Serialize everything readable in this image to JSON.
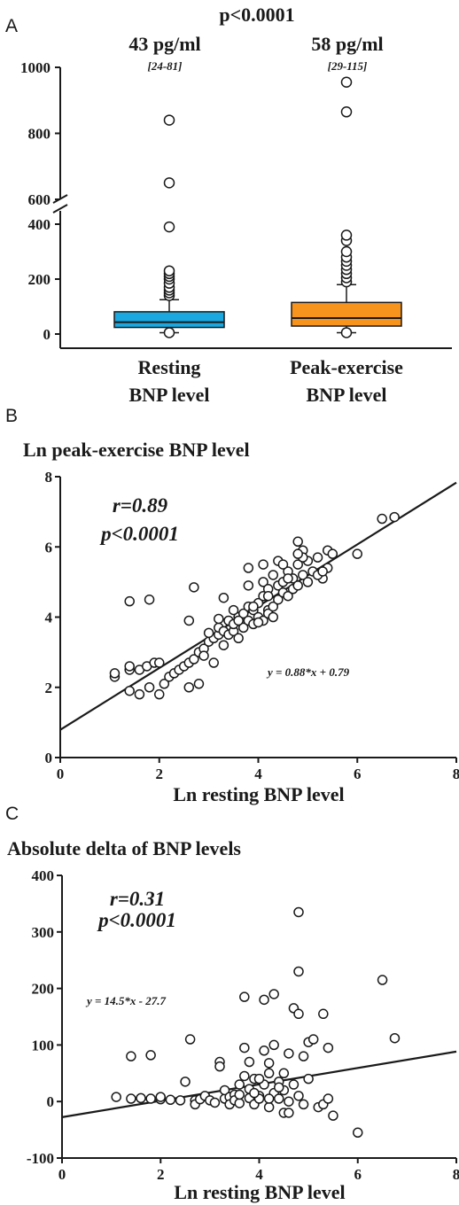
{
  "chart_data": [
    {
      "panel": "A",
      "type": "box",
      "top_annotation": "p<0.0001",
      "axis_break": [
        400,
        600
      ],
      "yticks": [
        "0",
        "200",
        "400",
        "600",
        "800",
        "1000"
      ],
      "categories": [
        "Resting BNP level",
        "Peak-exercise BNP level"
      ],
      "category_lines": [
        [
          "Resting",
          "BNP level"
        ],
        [
          "Peak-exercise",
          "BNP level"
        ]
      ],
      "medians_text": [
        "43 pg/ml",
        "58 pg/ml"
      ],
      "iqr_text": [
        "[24-81]",
        "[29-115]"
      ],
      "colors": [
        "#1ba8e0",
        "#f7941d"
      ],
      "boxes": [
        {
          "q1": 24,
          "median": 43,
          "q3": 81,
          "whisker_low": 5,
          "whisker_high": 125,
          "outliers": [
            5,
            140,
            150,
            160,
            170,
            185,
            200,
            210,
            220,
            230,
            390,
            650,
            840
          ]
        },
        {
          "q1": 29,
          "median": 58,
          "q3": 115,
          "whisker_low": 5,
          "whisker_high": 180,
          "outliers": [
            5,
            190,
            205,
            220,
            235,
            250,
            265,
            280,
            300,
            340,
            360,
            865,
            955
          ]
        }
      ]
    },
    {
      "panel": "B",
      "type": "scatter",
      "title": "Ln peak-exercise BNP level",
      "xlabel": "Ln resting BNP level",
      "xlim": [
        0,
        8
      ],
      "ylim": [
        0,
        8
      ],
      "xticks": [
        "0",
        "2",
        "4",
        "6",
        "8"
      ],
      "yticks": [
        "0",
        "2",
        "4",
        "6",
        "8"
      ],
      "r_text": "r=0.89",
      "p_text": "p<0.0001",
      "equation": "y = 0.88*x + 0.79",
      "fit": {
        "slope": 0.88,
        "intercept": 0.79
      },
      "points": [
        [
          1.1,
          2.3
        ],
        [
          1.1,
          2.4
        ],
        [
          1.4,
          2.5
        ],
        [
          1.4,
          2.6
        ],
        [
          1.4,
          1.9
        ],
        [
          1.4,
          4.45
        ],
        [
          1.6,
          2.5
        ],
        [
          1.6,
          1.8
        ],
        [
          1.75,
          2.6
        ],
        [
          1.8,
          4.5
        ],
        [
          1.8,
          2.0
        ],
        [
          1.9,
          2.7
        ],
        [
          2.0,
          1.8
        ],
        [
          2.0,
          2.7
        ],
        [
          2.1,
          2.1
        ],
        [
          2.2,
          2.3
        ],
        [
          2.3,
          2.4
        ],
        [
          2.4,
          2.5
        ],
        [
          2.5,
          2.6
        ],
        [
          2.6,
          2.7
        ],
        [
          2.7,
          2.8
        ],
        [
          2.6,
          3.9
        ],
        [
          2.7,
          4.85
        ],
        [
          2.6,
          2.0
        ],
        [
          2.8,
          2.1
        ],
        [
          2.8,
          3.0
        ],
        [
          2.9,
          3.1
        ],
        [
          3.0,
          3.3
        ],
        [
          3.1,
          3.4
        ],
        [
          3.1,
          2.7
        ],
        [
          3.2,
          3.5
        ],
        [
          3.2,
          3.7
        ],
        [
          3.3,
          4.55
        ],
        [
          3.3,
          3.2
        ],
        [
          3.3,
          3.6
        ],
        [
          3.4,
          3.9
        ],
        [
          3.4,
          3.5
        ],
        [
          3.5,
          3.6
        ],
        [
          3.5,
          3.8
        ],
        [
          3.6,
          4.0
        ],
        [
          3.6,
          3.4
        ],
        [
          3.7,
          4.1
        ],
        [
          3.7,
          3.7
        ],
        [
          3.8,
          4.3
        ],
        [
          3.8,
          3.9
        ],
        [
          3.8,
          5.4
        ],
        [
          3.8,
          4.9
        ],
        [
          3.9,
          4.2
        ],
        [
          3.9,
          3.8
        ],
        [
          4.0,
          4.0
        ],
        [
          4.0,
          4.4
        ],
        [
          4.1,
          5.0
        ],
        [
          4.1,
          4.6
        ],
        [
          4.1,
          3.9
        ],
        [
          4.1,
          5.5
        ],
        [
          4.2,
          4.2
        ],
        [
          4.2,
          4.8
        ],
        [
          4.2,
          4.1
        ],
        [
          4.3,
          5.2
        ],
        [
          4.3,
          4.3
        ],
        [
          4.4,
          4.9
        ],
        [
          4.4,
          4.5
        ],
        [
          4.4,
          5.6
        ],
        [
          4.5,
          5.0
        ],
        [
          4.5,
          4.7
        ],
        [
          4.6,
          4.6
        ],
        [
          4.6,
          5.3
        ],
        [
          4.7,
          4.8
        ],
        [
          4.7,
          5.1
        ],
        [
          4.8,
          5.5
        ],
        [
          4.8,
          4.9
        ],
        [
          4.8,
          6.15
        ],
        [
          4.9,
          5.2
        ],
        [
          4.9,
          5.9
        ],
        [
          5.0,
          5.0
        ],
        [
          5.0,
          5.6
        ],
        [
          5.1,
          5.3
        ],
        [
          5.2,
          5.7
        ],
        [
          5.3,
          5.1
        ],
        [
          5.4,
          5.9
        ],
        [
          5.4,
          5.4
        ],
        [
          5.5,
          5.8
        ],
        [
          6.0,
          5.8
        ],
        [
          6.5,
          6.8
        ],
        [
          6.75,
          6.85
        ],
        [
          4.3,
          4.0
        ],
        [
          4.0,
          3.85
        ],
        [
          3.9,
          4.3
        ],
        [
          4.5,
          5.5
        ],
        [
          4.9,
          5.7
        ],
        [
          5.2,
          5.2
        ],
        [
          3.2,
          3.95
        ],
        [
          3.0,
          3.55
        ],
        [
          2.9,
          2.9
        ],
        [
          3.6,
          3.9
        ],
        [
          4.2,
          4.6
        ],
        [
          4.6,
          5.1
        ],
        [
          3.5,
          4.2
        ],
        [
          4.8,
          5.8
        ],
        [
          5.3,
          5.3
        ]
      ]
    },
    {
      "panel": "C",
      "type": "scatter",
      "title": "Absolute delta of BNP levels",
      "xlabel": "Ln resting BNP level",
      "xlim": [
        0,
        8
      ],
      "ylim": [
        -100,
        400
      ],
      "xticks": [
        "0",
        "2",
        "4",
        "6",
        "8"
      ],
      "yticks": [
        "-100",
        "0",
        "100",
        "200",
        "300",
        "400"
      ],
      "r_text": "r=0.31",
      "p_text": "p<0.0001",
      "equation": "y = 14.5*x - 27.7",
      "fit": {
        "slope": 14.5,
        "intercept": -27.7
      },
      "points": [
        [
          1.1,
          8
        ],
        [
          1.4,
          5
        ],
        [
          1.4,
          80
        ],
        [
          1.6,
          6
        ],
        [
          1.8,
          82
        ],
        [
          1.8,
          5
        ],
        [
          2.0,
          4
        ],
        [
          2.0,
          8
        ],
        [
          2.2,
          3
        ],
        [
          2.4,
          2
        ],
        [
          2.5,
          35
        ],
        [
          2.6,
          110
        ],
        [
          2.7,
          2
        ],
        [
          2.7,
          -5
        ],
        [
          2.8,
          4
        ],
        [
          2.9,
          10
        ],
        [
          3.0,
          2
        ],
        [
          3.1,
          -2
        ],
        [
          3.2,
          70
        ],
        [
          3.2,
          62
        ],
        [
          3.3,
          5
        ],
        [
          3.3,
          20
        ],
        [
          3.4,
          8
        ],
        [
          3.4,
          -5
        ],
        [
          3.5,
          12
        ],
        [
          3.5,
          2
        ],
        [
          3.6,
          30
        ],
        [
          3.6,
          -3
        ],
        [
          3.7,
          45
        ],
        [
          3.7,
          95
        ],
        [
          3.7,
          185
        ],
        [
          3.8,
          6
        ],
        [
          3.8,
          70
        ],
        [
          3.8,
          22
        ],
        [
          3.9,
          -5
        ],
        [
          3.9,
          40
        ],
        [
          4.0,
          10
        ],
        [
          4.0,
          5
        ],
        [
          4.1,
          30
        ],
        [
          4.1,
          180
        ],
        [
          4.1,
          90
        ],
        [
          4.2,
          -10
        ],
        [
          4.2,
          50
        ],
        [
          4.2,
          68
        ],
        [
          4.3,
          190
        ],
        [
          4.3,
          100
        ],
        [
          4.3,
          15
        ],
        [
          4.4,
          5
        ],
        [
          4.4,
          35
        ],
        [
          4.5,
          -20
        ],
        [
          4.5,
          20
        ],
        [
          4.6,
          85
        ],
        [
          4.6,
          -20
        ],
        [
          4.6,
          0
        ],
        [
          4.7,
          165
        ],
        [
          4.7,
          30
        ],
        [
          4.8,
          335
        ],
        [
          4.8,
          155
        ],
        [
          4.8,
          10
        ],
        [
          4.8,
          230
        ],
        [
          4.9,
          -5
        ],
        [
          4.9,
          80
        ],
        [
          5.0,
          105
        ],
        [
          5.0,
          40
        ],
        [
          5.1,
          110
        ],
        [
          5.2,
          -10
        ],
        [
          5.3,
          155
        ],
        [
          5.3,
          -5
        ],
        [
          5.4,
          95
        ],
        [
          5.4,
          5
        ],
        [
          5.5,
          -25
        ],
        [
          6.0,
          -55
        ],
        [
          6.5,
          215
        ],
        [
          6.75,
          112
        ],
        [
          4.4,
          25
        ],
        [
          3.6,
          12
        ],
        [
          4.0,
          40
        ],
        [
          4.5,
          50
        ],
        [
          4.2,
          5
        ],
        [
          3.9,
          15
        ]
      ]
    }
  ]
}
